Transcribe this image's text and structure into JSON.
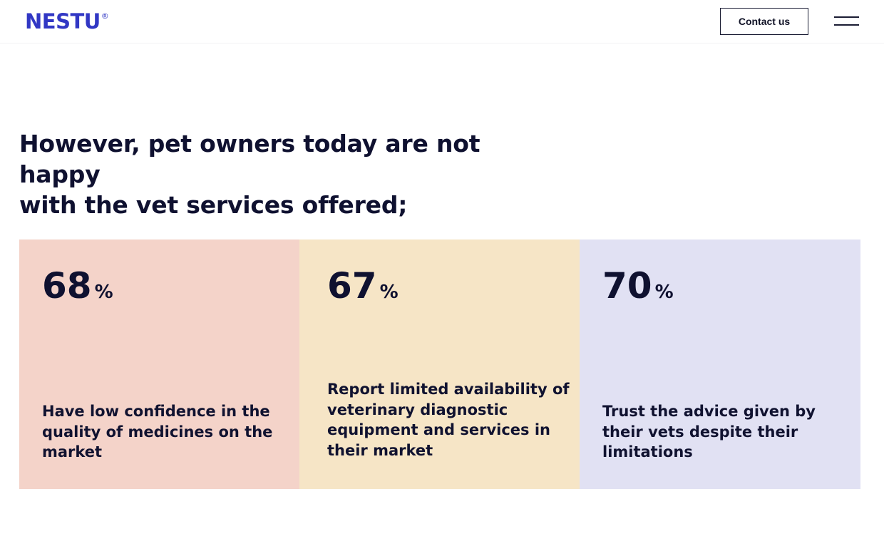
{
  "header": {
    "logo_text": "NESTU",
    "logo_mark": "®",
    "contact_label": "Contact us",
    "menu_icon": "hamburger-menu-icon"
  },
  "main": {
    "headline_line1": "However, pet owners today are not happy",
    "headline_line2": "with the vet services offered;"
  },
  "stats": [
    {
      "value": "68",
      "unit": "%",
      "description": "Have low confidence in the quality of medicines on the market",
      "background": "#f4d3c9"
    },
    {
      "value": "67",
      "unit": "%",
      "description": "Report limited availability of veterinary diagnostic equipment and services in their market",
      "background": "#f6e5c6"
    },
    {
      "value": "70",
      "unit": "%",
      "description": "Trust the advice given by their vets despite their limitations",
      "background": "#e1e1f3"
    }
  ],
  "colors": {
    "brand": "#3137c4",
    "text": "#0f1130",
    "card_1": "#f4d3c9",
    "card_2": "#f6e5c6",
    "card_3": "#e1e1f3"
  }
}
